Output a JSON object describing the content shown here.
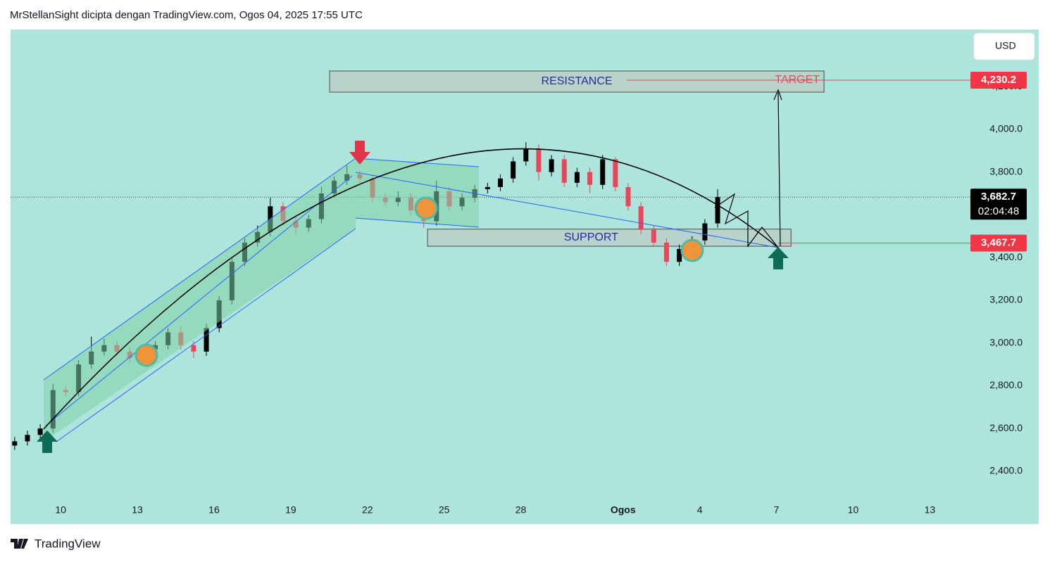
{
  "header": {
    "title": "MrStellanSight dicipta dengan TradingView.com, Ogos 04, 2025 17:55 UTC"
  },
  "footer": {
    "brand": "TradingView"
  },
  "chart_data": {
    "type": "candlestick",
    "currency": "USD",
    "up_color": "#000000",
    "down_color": "#e8475a",
    "xlim": [
      -1.96,
      38.26
    ],
    "ylim": [
      2153,
      4467
    ],
    "xticks": [
      {
        "value": 0,
        "label": "10"
      },
      {
        "value": 3,
        "label": "13"
      },
      {
        "value": 6,
        "label": "16"
      },
      {
        "value": 9,
        "label": "19"
      },
      {
        "value": 12,
        "label": "22"
      },
      {
        "value": 15,
        "label": "25"
      },
      {
        "value": 18,
        "label": "28"
      },
      {
        "value": 22,
        "label": "Ogos"
      },
      {
        "value": 25,
        "label": "4"
      },
      {
        "value": 28,
        "label": "7"
      },
      {
        "value": 31,
        "label": "10"
      },
      {
        "value": 34,
        "label": "13"
      }
    ],
    "yticks": [
      {
        "value": 2400,
        "label": "2,400.0"
      },
      {
        "value": 2600,
        "label": "2,600.0"
      },
      {
        "value": 2800,
        "label": "2,800.0"
      },
      {
        "value": 3000,
        "label": "3,000.0"
      },
      {
        "value": 3200,
        "label": "3,200.0"
      },
      {
        "value": 3400,
        "label": "3,400.0"
      },
      {
        "value": 3600,
        "label": "3,600.0"
      },
      {
        "value": 3800,
        "label": "3,800.0"
      },
      {
        "value": 4000,
        "label": "4,000.0"
      },
      {
        "value": 4200,
        "label": "4,200.0"
      }
    ],
    "x": [
      -1.8,
      -1.3,
      -0.8,
      -0.3,
      0.2,
      0.7,
      1.2,
      1.7,
      2.2,
      2.7,
      3.2,
      3.7,
      4.2,
      4.7,
      5.2,
      5.7,
      6.2,
      6.7,
      7.2,
      7.7,
      8.2,
      8.7,
      9.2,
      9.7,
      10.2,
      10.7,
      11.2,
      11.7,
      12.2,
      12.7,
      13.2,
      13.7,
      14.2,
      14.7,
      15.2,
      15.7,
      16.2,
      16.7,
      17.2,
      17.7,
      18.2,
      18.7,
      19.2,
      19.7,
      20.2,
      20.7,
      21.2,
      21.7,
      22.2,
      22.7,
      23.2,
      23.7,
      24.2,
      24.7,
      25.2,
      25.7
    ],
    "open": [
      2520,
      2540,
      2570,
      2600,
      2780,
      2770,
      2900,
      2960,
      2990,
      2960,
      2930,
      2970,
      2990,
      3050,
      2990,
      2960,
      3070,
      3200,
      3380,
      3470,
      3520,
      3640,
      3570,
      3540,
      3580,
      3700,
      3760,
      3790,
      3770,
      3680,
      3660,
      3680,
      3620,
      3570,
      3710,
      3640,
      3680,
      3720,
      3730,
      3770,
      3850,
      3910,
      3800,
      3860,
      3750,
      3800,
      3740,
      3860,
      3730,
      3640,
      3530,
      3470,
      3380,
      3440,
      3480,
      3560
    ],
    "high": [
      2560,
      2590,
      2620,
      2810,
      2800,
      2920,
      3030,
      3020,
      3010,
      2980,
      2990,
      3010,
      3070,
      3080,
      3010,
      3090,
      3220,
      3400,
      3490,
      3550,
      3680,
      3660,
      3590,
      3600,
      3730,
      3780,
      3830,
      3810,
      3790,
      3700,
      3710,
      3700,
      3640,
      3760,
      3730,
      3700,
      3740,
      3750,
      3790,
      3870,
      3940,
      3930,
      3880,
      3880,
      3820,
      3820,
      3880,
      3870,
      3750,
      3660,
      3550,
      3490,
      3460,
      3500,
      3580,
      3720
    ],
    "low": [
      2500,
      2520,
      2550,
      2580,
      2750,
      2750,
      2880,
      2940,
      2940,
      2910,
      2910,
      2950,
      2970,
      2970,
      2930,
      2940,
      3050,
      3180,
      3360,
      3450,
      3500,
      3550,
      3510,
      3520,
      3560,
      3680,
      3740,
      3750,
      3660,
      3640,
      3640,
      3600,
      3540,
      3550,
      3620,
      3620,
      3660,
      3700,
      3710,
      3750,
      3830,
      3760,
      3780,
      3730,
      3730,
      3700,
      3720,
      3710,
      3620,
      3510,
      3450,
      3360,
      3360,
      3420,
      3460,
      3540
    ],
    "close": [
      2540,
      2570,
      2600,
      2780,
      2770,
      2900,
      2960,
      2990,
      2960,
      2930,
      2970,
      2990,
      3050,
      2990,
      2960,
      3070,
      3200,
      3380,
      3470,
      3520,
      3640,
      3570,
      3540,
      3580,
      3700,
      3760,
      3790,
      3770,
      3680,
      3660,
      3680,
      3620,
      3570,
      3710,
      3640,
      3680,
      3720,
      3730,
      3770,
      3850,
      3910,
      3800,
      3860,
      3750,
      3800,
      3740,
      3860,
      3730,
      3640,
      3530,
      3470,
      3380,
      3440,
      3480,
      3560,
      3682.7
    ],
    "zones": [
      {
        "label": "RESISTANCE",
        "x": [
          10.52,
          29.86
        ],
        "y": [
          4174,
          4273
        ]
      },
      {
        "label": "SUPPORT",
        "x": [
          14.35,
          28.57
        ],
        "y": [
          3453,
          3533
        ]
      }
    ],
    "target": {
      "text": "TARGET",
      "value": 4230.2,
      "label": "4,230.2"
    },
    "support_level": {
      "value": 3467.7,
      "label": "3,467.7"
    },
    "last_price": {
      "value": 3682.7,
      "label": "3,682.7",
      "countdown": "02:04:48"
    }
  }
}
